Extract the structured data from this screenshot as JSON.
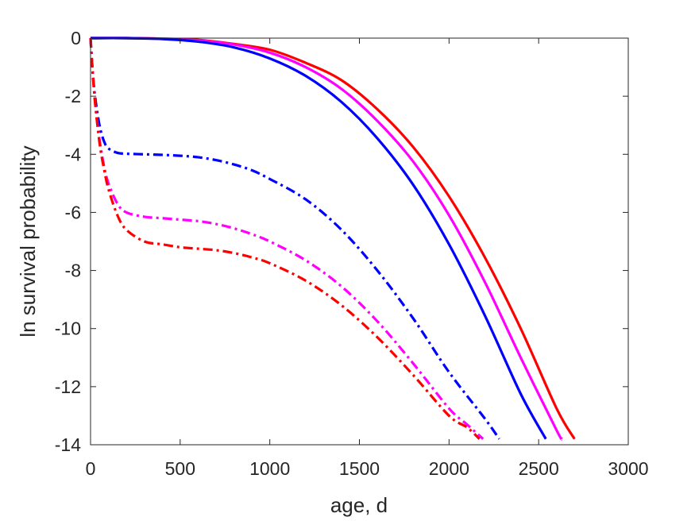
{
  "chart_data": {
    "type": "line",
    "title": "",
    "xlabel": "age, d",
    "ylabel": "ln survival probability",
    "xlim": [
      0,
      3000
    ],
    "ylim": [
      -14,
      0
    ],
    "xticks": [
      0,
      500,
      1000,
      1500,
      2000,
      2500,
      3000
    ],
    "yticks": [
      0,
      -2,
      -4,
      -6,
      -8,
      -10,
      -12,
      -14
    ],
    "xtick_labels": [
      "0",
      "500",
      "1000",
      "1500",
      "2000",
      "2500",
      "3000"
    ],
    "ytick_labels": [
      "0",
      "-2",
      "-4",
      "-6",
      "-8",
      "-10",
      "-12",
      "-14"
    ],
    "grid": false,
    "legend": "none",
    "series": [
      {
        "color": "#ff0000",
        "style": "solid",
        "x": [
          0,
          200,
          400,
          600,
          800,
          1000,
          1200,
          1400,
          1600,
          1800,
          2000,
          2200,
          2400,
          2600,
          2700
        ],
        "y": [
          0,
          0,
          -0.02,
          -0.06,
          -0.2,
          -0.4,
          -0.85,
          -1.45,
          -2.45,
          -3.75,
          -5.45,
          -7.55,
          -10.0,
          -12.75,
          -13.8
        ]
      },
      {
        "color": "#ff00ff",
        "style": "solid",
        "x": [
          0,
          200,
          400,
          600,
          800,
          1000,
          1200,
          1400,
          1600,
          1800,
          2000,
          2200,
          2400,
          2600,
          2630
        ],
        "y": [
          0,
          0,
          -0.02,
          -0.08,
          -0.22,
          -0.5,
          -1.0,
          -1.75,
          -2.85,
          -4.25,
          -6.1,
          -8.4,
          -11.0,
          -13.5,
          -13.8
        ]
      },
      {
        "color": "#0000ff",
        "style": "solid",
        "x": [
          0,
          200,
          400,
          600,
          800,
          1000,
          1200,
          1400,
          1600,
          1800,
          2000,
          2200,
          2400,
          2540
        ],
        "y": [
          0,
          0,
          -0.03,
          -0.12,
          -0.32,
          -0.7,
          -1.3,
          -2.2,
          -3.45,
          -5.05,
          -7.1,
          -9.55,
          -12.25,
          -13.8
        ]
      },
      {
        "color": "#0000ff",
        "style": "dashdot",
        "x": [
          0,
          10,
          25,
          50,
          75,
          100,
          150,
          200,
          300,
          400,
          500,
          600,
          700,
          800,
          900,
          1000,
          1200,
          1400,
          1600,
          1800,
          2000,
          2200,
          2280
        ],
        "y": [
          0,
          -1.0,
          -2.0,
          -3.0,
          -3.55,
          -3.8,
          -3.95,
          -3.98,
          -4.0,
          -4.02,
          -4.05,
          -4.1,
          -4.2,
          -4.35,
          -4.55,
          -4.85,
          -5.55,
          -6.6,
          -8.0,
          -9.65,
          -11.5,
          -13.1,
          -13.8
        ]
      },
      {
        "color": "#ff00ff",
        "style": "dashdot",
        "x": [
          0,
          10,
          25,
          50,
          75,
          100,
          150,
          200,
          300,
          400,
          500,
          600,
          700,
          800,
          900,
          1000,
          1200,
          1400,
          1600,
          1800,
          2000,
          2100,
          2190
        ],
        "y": [
          0,
          -1.0,
          -2.2,
          -3.5,
          -4.4,
          -5.0,
          -5.7,
          -6.0,
          -6.15,
          -6.2,
          -6.25,
          -6.3,
          -6.4,
          -6.55,
          -6.75,
          -7.0,
          -7.65,
          -8.55,
          -9.75,
          -11.2,
          -12.75,
          -13.3,
          -13.8
        ]
      },
      {
        "color": "#ff0000",
        "style": "dashdot",
        "x": [
          0,
          10,
          25,
          50,
          75,
          100,
          150,
          200,
          300,
          400,
          500,
          600,
          700,
          800,
          900,
          1000,
          1200,
          1400,
          1600,
          1800,
          2000,
          2100,
          2170
        ],
        "y": [
          0,
          -1.0,
          -2.2,
          -3.6,
          -4.5,
          -5.2,
          -6.1,
          -6.6,
          -7.0,
          -7.1,
          -7.2,
          -7.25,
          -7.3,
          -7.4,
          -7.55,
          -7.75,
          -8.35,
          -9.2,
          -10.3,
          -11.6,
          -13.0,
          -13.4,
          -13.8
        ]
      }
    ]
  }
}
